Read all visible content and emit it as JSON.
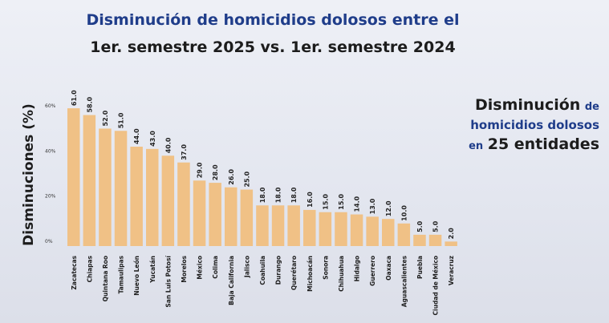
{
  "header": {
    "title_line1": "Disminución de homicidios dolosos entre el",
    "title_line2": "1er. semestre 2025 vs. 1er. semestre 2024"
  },
  "side_note": {
    "line1_big": "Disminución",
    "line1_small": "de",
    "line2": "homicidios dolosos",
    "line3_small": "en",
    "line3_big": "25 entidades"
  },
  "chart_data": {
    "type": "bar",
    "title": "Disminución de homicidios dolosos entre el 1er. semestre 2025 vs. 1er. semestre 2024",
    "xlabel": "",
    "ylabel": "Disminuciones (%)",
    "ylim": [
      0,
      66
    ],
    "yticks": [
      "0%",
      "20%",
      "40%",
      "60%"
    ],
    "grid": false,
    "bar_color": "#f0c186",
    "categories": [
      "Zacatecas",
      "Chiapas",
      "Quintana Roo",
      "Tamaulipas",
      "Nuevo León",
      "Yucatán",
      "San Luis Potosí",
      "Morelos",
      "México",
      "Colima",
      "Baja California",
      "Jalisco",
      "Coahuila",
      "Durango",
      "Querétaro",
      "Michoacán",
      "Sonora",
      "Chihuahua",
      "Hidalgo",
      "Guerrero",
      "Oaxaca",
      "Aguascalientes",
      "Puebla",
      "Ciudad de México",
      "Veracruz"
    ],
    "values": [
      61.0,
      58.0,
      52.0,
      51.0,
      44.0,
      43.0,
      40.0,
      37.0,
      29.0,
      28.0,
      26.0,
      25.0,
      18.0,
      18.0,
      18.0,
      16.0,
      15.0,
      15.0,
      14.0,
      13.0,
      12.0,
      10.0,
      5.0,
      5.0,
      2.0
    ],
    "value_labels": [
      "61.0",
      "58.0",
      "52.0",
      "51.0",
      "44.0",
      "43.0",
      "40.0",
      "37.0",
      "29.0",
      "28.0",
      "26.0",
      "25.0",
      "18.0",
      "18.0",
      "18.0",
      "16.0",
      "15.0",
      "15.0",
      "14.0",
      "13.0",
      "12.0",
      "10.0",
      "5.0",
      "5.0",
      "2.0"
    ]
  }
}
